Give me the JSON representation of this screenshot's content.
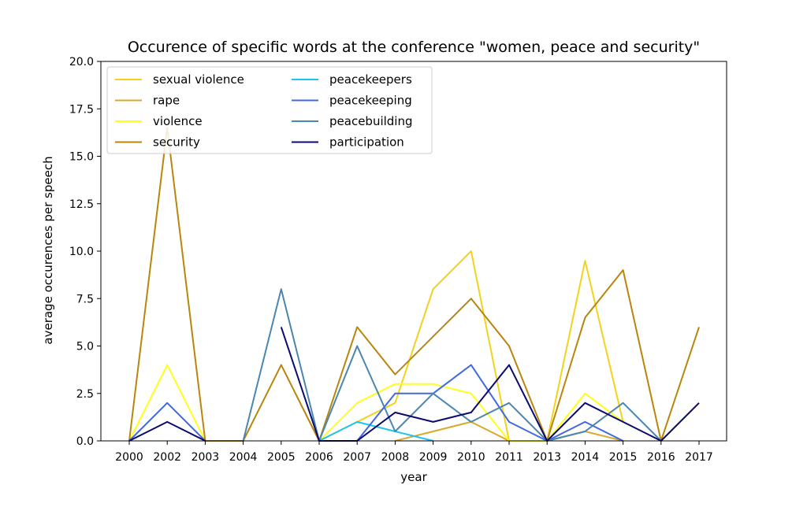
{
  "chart_data": {
    "type": "line",
    "title": "Occurence of specific words at the conference \"women, peace and security\"",
    "xlabel": "year",
    "ylabel": "average occurences per speech",
    "categories": [
      "2000",
      "2002",
      "2003",
      "2004",
      "2005",
      "2006",
      "2007",
      "2008",
      "2009",
      "2010",
      "2011",
      "2013",
      "2014",
      "2015",
      "2016",
      "2017"
    ],
    "ylim": [
      0,
      20
    ],
    "yticks": [
      "0.0",
      "2.5",
      "5.0",
      "7.5",
      "10.0",
      "12.5",
      "15.0",
      "17.5",
      "20.0"
    ],
    "ytick_values": [
      0,
      2.5,
      5,
      7.5,
      10,
      12.5,
      15,
      17.5,
      20
    ],
    "grid": false,
    "legend_position": "top-left",
    "series": [
      {
        "name": "sexual violence",
        "color": "#f2d21b",
        "values": [
          0,
          null,
          null,
          null,
          null,
          0,
          1,
          2,
          8,
          10,
          0,
          0,
          9.5,
          1,
          null,
          null
        ]
      },
      {
        "name": "rape",
        "color": "#d9a92c",
        "values": [
          null,
          null,
          null,
          null,
          null,
          null,
          null,
          0,
          0.5,
          1,
          0,
          0,
          0.5,
          0,
          null,
          null
        ]
      },
      {
        "name": "violence",
        "color": "#ffff1a",
        "values": [
          0,
          4,
          0,
          null,
          null,
          0,
          2,
          3,
          3,
          2.5,
          0,
          0,
          2.5,
          1,
          null,
          null
        ]
      },
      {
        "name": "security",
        "color": "#b8860b",
        "values": [
          0,
          16.5,
          0,
          0,
          4,
          0,
          6,
          3.5,
          5.5,
          7.5,
          5,
          0,
          6.5,
          9,
          0,
          6
        ]
      },
      {
        "name": "peacekeepers",
        "color": "#1fc3f0",
        "values": [
          null,
          null,
          null,
          null,
          null,
          0,
          1,
          0.5,
          0,
          null,
          null,
          null,
          null,
          null,
          null,
          null
        ]
      },
      {
        "name": "peacekeeping",
        "color": "#4169e1",
        "values": [
          0,
          2,
          0,
          null,
          null,
          0,
          0,
          2.5,
          2.5,
          4,
          1,
          0,
          1,
          0,
          null,
          null
        ]
      },
      {
        "name": "peacebuilding",
        "color": "#4a86b0",
        "values": [
          null,
          null,
          null,
          0,
          8,
          0,
          5,
          0.5,
          2.5,
          1,
          2,
          0,
          0.5,
          2,
          0,
          null
        ]
      },
      {
        "name": "participation",
        "color": "#0b0b6e",
        "values": [
          0,
          1,
          0,
          null,
          6,
          0,
          0,
          1.5,
          1,
          1.5,
          4,
          0,
          2,
          1,
          0,
          2
        ]
      }
    ]
  }
}
